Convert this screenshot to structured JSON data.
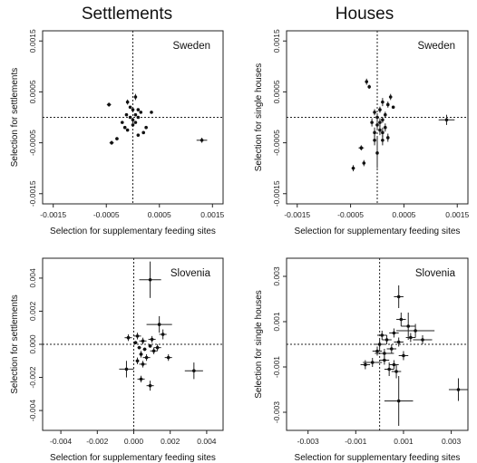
{
  "column_titles": [
    "Settlements",
    "Houses"
  ],
  "chart_data": [
    {
      "type": "scatter",
      "title": "Sweden",
      "xlabel": "Selection for supplementary feeding sites",
      "ylabel": "Selection for settlements",
      "xlim": [
        -0.0017,
        0.0017
      ],
      "ylim": [
        -0.0017,
        0.0017
      ],
      "xticks": [
        -0.0015,
        -0.0005,
        0.0005,
        0.0015
      ],
      "xtick_labels": [
        "-0.0015",
        "-0.0005",
        "0.0005",
        "0.0015"
      ],
      "yticks": [
        -0.0015,
        -0.0005,
        0.0005,
        0.0015
      ],
      "ytick_labels": [
        "-0.0015",
        "-0.0005",
        "0.0005",
        "0.0015"
      ],
      "grid": false,
      "reference_lines": {
        "x": 0,
        "y": 0
      },
      "points": [
        {
          "x": -0.00045,
          "y": 0.00025,
          "xerr": 4e-05,
          "yerr": 4e-05
        },
        {
          "x": -0.0004,
          "y": -0.0005,
          "xerr": 4e-05,
          "yerr": 4e-05
        },
        {
          "x": -0.0003,
          "y": -0.00042,
          "xerr": 3e-05,
          "yerr": 3e-05
        },
        {
          "x": 0.0013,
          "y": -0.00045,
          "xerr": 0.0001,
          "yerr": 5e-05
        },
        {
          "x": 0.00035,
          "y": 0.0001,
          "xerr": 2e-05,
          "yerr": 2e-05
        },
        {
          "x": 0.00025,
          "y": -0.0002,
          "xerr": 2e-05,
          "yerr": 2e-05
        },
        {
          "x": 0.0002,
          "y": -0.0003,
          "xerr": 2e-05,
          "yerr": 2e-05
        },
        {
          "x": 0.0001,
          "y": -0.00035,
          "xerr": 2e-05,
          "yerr": 2e-05
        },
        {
          "x": 5e-05,
          "y": 0.0004,
          "xerr": 2e-05,
          "yerr": 6e-05
        },
        {
          "x": -0.0001,
          "y": 0.0003,
          "xerr": 2e-05,
          "yerr": 5e-05
        },
        {
          "x": -5e-05,
          "y": 0.0002,
          "xerr": 2e-05,
          "yerr": 2e-05
        },
        {
          "x": 0.0,
          "y": 0.00015,
          "xerr": 2e-05,
          "yerr": 2e-05
        },
        {
          "x": -0.00012,
          "y": 5e-05,
          "xerr": 2e-05,
          "yerr": 2e-05
        },
        {
          "x": -0.0002,
          "y": -0.0001,
          "xerr": 2e-05,
          "yerr": 2e-05
        },
        {
          "x": -0.00015,
          "y": -0.0002,
          "xerr": 2e-05,
          "yerr": 2e-05
        },
        {
          "x": -0.0001,
          "y": -0.00025,
          "xerr": 2e-05,
          "yerr": 2e-05
        },
        {
          "x": 0.0,
          "y": -0.00015,
          "xerr": 2e-05,
          "yerr": 2e-05
        },
        {
          "x": 5e-05,
          "y": -0.0001,
          "xerr": 2e-05,
          "yerr": 2e-05
        },
        {
          "x": 0.0001,
          "y": 0.0,
          "xerr": 2e-05,
          "yerr": 2e-05
        },
        {
          "x": 0.00015,
          "y": 0.0001,
          "xerr": 2e-05,
          "yerr": 2e-05
        },
        {
          "x": -5e-05,
          "y": 0.0,
          "xerr": 2e-05,
          "yerr": 2e-05
        },
        {
          "x": 0.0,
          "y": -5e-05,
          "xerr": 2e-05,
          "yerr": 2e-05
        },
        {
          "x": 0.0001,
          "y": 0.00015,
          "xerr": 2e-05,
          "yerr": 2e-05
        },
        {
          "x": 5e-05,
          "y": 5e-05,
          "xerr": 2e-05,
          "yerr": 2e-05
        }
      ]
    },
    {
      "type": "scatter",
      "title": "Sweden",
      "xlabel": "Selection for supplementary feeding sites",
      "ylabel": "Selection for single houses",
      "xlim": [
        -0.0017,
        0.0017
      ],
      "ylim": [
        -0.0017,
        0.0017
      ],
      "xticks": [
        -0.0015,
        -0.0005,
        0.0005,
        0.0015
      ],
      "xtick_labels": [
        "-0.0015",
        "-0.0005",
        "0.0005",
        "0.0015"
      ],
      "yticks": [
        -0.0015,
        -0.0005,
        0.0005,
        0.0015
      ],
      "ytick_labels": [
        "-0.0015",
        "-0.0005",
        "0.0005",
        "0.0015"
      ],
      "grid": false,
      "reference_lines": {
        "x": 0,
        "y": 0
      },
      "points": [
        {
          "x": -0.00045,
          "y": -0.001,
          "xerr": 3e-05,
          "yerr": 6e-05
        },
        {
          "x": -0.00025,
          "y": -0.0009,
          "xerr": 3e-05,
          "yerr": 6e-05
        },
        {
          "x": -0.0003,
          "y": -0.0006,
          "xerr": 5e-05,
          "yerr": 5e-05
        },
        {
          "x": -0.0002,
          "y": 0.0007,
          "xerr": 2e-05,
          "yerr": 6e-05
        },
        {
          "x": -0.00015,
          "y": 0.0006,
          "xerr": 2e-05,
          "yerr": 4e-05
        },
        {
          "x": 0.00025,
          "y": 0.0004,
          "xerr": 3e-05,
          "yerr": 6e-05
        },
        {
          "x": 0.0003,
          "y": 0.0002,
          "xerr": 2e-05,
          "yerr": 3e-05
        },
        {
          "x": 0.0013,
          "y": -5e-05,
          "xerr": 0.00015,
          "yerr": 0.0001
        },
        {
          "x": 0.0002,
          "y": 0.00025,
          "xerr": 2e-05,
          "yerr": 6e-05
        },
        {
          "x": 0.0001,
          "y": 0.0003,
          "xerr": 2e-05,
          "yerr": 8e-05
        },
        {
          "x": 5e-05,
          "y": 0.00015,
          "xerr": 2e-05,
          "yerr": 6e-05
        },
        {
          "x": -5e-05,
          "y": 0.0001,
          "xerr": 2e-05,
          "yerr": 6e-05
        },
        {
          "x": 0.0,
          "y": 0.0,
          "xerr": 2e-05,
          "yerr": 8e-05
        },
        {
          "x": -0.0001,
          "y": -0.0001,
          "xerr": 2e-05,
          "yerr": 8e-05
        },
        {
          "x": 0.0,
          "y": -0.00015,
          "xerr": 2e-05,
          "yerr": 0.0001
        },
        {
          "x": 5e-05,
          "y": -0.00025,
          "xerr": 2e-05,
          "yerr": 0.0001
        },
        {
          "x": -5e-05,
          "y": -0.0003,
          "xerr": 2e-05,
          "yerr": 0.0001
        },
        {
          "x": 0.0001,
          "y": -0.0003,
          "xerr": 2e-05,
          "yerr": 0.0001
        },
        {
          "x": 0.0001,
          "y": -0.00045,
          "xerr": 2e-05,
          "yerr": 0.0001
        },
        {
          "x": 0.00015,
          "y": 5e-05,
          "xerr": 2e-05,
          "yerr": 6e-05
        },
        {
          "x": 0.0001,
          "y": -5e-05,
          "xerr": 2e-05,
          "yerr": 6e-05
        },
        {
          "x": 0.00015,
          "y": -0.0002,
          "xerr": 2e-05,
          "yerr": 8e-05
        },
        {
          "x": -5e-05,
          "y": -0.00045,
          "xerr": 2e-05,
          "yerr": 0.0001
        },
        {
          "x": 5e-05,
          "y": -0.0001,
          "xerr": 2e-05,
          "yerr": 8e-05
        },
        {
          "x": 0.0,
          "y": -0.0007,
          "xerr": 2e-05,
          "yerr": 0.0003
        },
        {
          "x": 0.0002,
          "y": -0.0004,
          "xerr": 2e-05,
          "yerr": 8e-05
        }
      ]
    },
    {
      "type": "scatter",
      "title": "Slovenia",
      "xlabel": "Selection for supplementary feeding sites",
      "ylabel": "Selection for settlements",
      "xlim": [
        -0.005,
        0.0049
      ],
      "ylim": [
        -0.0052,
        0.0052
      ],
      "xticks": [
        -0.004,
        -0.002,
        0.0,
        0.002,
        0.004
      ],
      "xtick_labels": [
        "-0.004",
        "-0.002",
        "0.000",
        "0.002",
        "0.004"
      ],
      "yticks": [
        -0.004,
        -0.002,
        0.0,
        0.002,
        0.004
      ],
      "ytick_labels": [
        "-0.004",
        "-0.002",
        "0.000",
        "0.002",
        "0.004"
      ],
      "grid": false,
      "reference_lines": {
        "x": 0,
        "y": 0
      },
      "points": [
        {
          "x": 0.0009,
          "y": 0.0039,
          "xerr": 0.0006,
          "yerr": 0.0011
        },
        {
          "x": 0.0014,
          "y": 0.0012,
          "xerr": 0.0007,
          "yerr": 0.0005
        },
        {
          "x": 0.0016,
          "y": 0.0006,
          "xerr": 0.0002,
          "yerr": 0.0003
        },
        {
          "x": -0.0004,
          "y": -0.0015,
          "xerr": 0.0004,
          "yerr": 0.0005
        },
        {
          "x": 0.0004,
          "y": -0.0021,
          "xerr": 0.0002,
          "yerr": 0.0002
        },
        {
          "x": 0.0009,
          "y": -0.0025,
          "xerr": 0.0002,
          "yerr": 0.0003
        },
        {
          "x": 0.0033,
          "y": -0.0016,
          "xerr": 0.0005,
          "yerr": 0.0005
        },
        {
          "x": -0.0003,
          "y": 0.0004,
          "xerr": 0.0002,
          "yerr": 0.0002
        },
        {
          "x": 0.0002,
          "y": 0.0005,
          "xerr": 0.0002,
          "yerr": 0.0002
        },
        {
          "x": 0.0005,
          "y": 0.0002,
          "xerr": 0.0002,
          "yerr": 0.0002
        },
        {
          "x": 0.0003,
          "y": -0.0002,
          "xerr": 0.0001,
          "yerr": 0.0001
        },
        {
          "x": 0.0006,
          "y": -0.0003,
          "xerr": 0.0001,
          "yerr": 0.0001
        },
        {
          "x": 0.0009,
          "y": -0.0001,
          "xerr": 0.0001,
          "yerr": 0.0001
        },
        {
          "x": 0.0011,
          "y": -0.0004,
          "xerr": 0.0002,
          "yerr": 0.0002
        },
        {
          "x": 0.0013,
          "y": -0.0002,
          "xerr": 0.0002,
          "yerr": 0.0002
        },
        {
          "x": 0.0004,
          "y": -0.0006,
          "xerr": 0.0001,
          "yerr": 0.0002
        },
        {
          "x": 0.0007,
          "y": -0.0008,
          "xerr": 0.0002,
          "yerr": 0.0002
        },
        {
          "x": 0.0002,
          "y": -0.001,
          "xerr": 0.0001,
          "yerr": 0.0002
        },
        {
          "x": 0.0005,
          "y": -0.0012,
          "xerr": 0.0002,
          "yerr": 0.0002
        },
        {
          "x": 0.0019,
          "y": -0.0008,
          "xerr": 0.0002,
          "yerr": 0.0002
        },
        {
          "x": 0.001,
          "y": 0.0003,
          "xerr": 0.0002,
          "yerr": 0.0002
        },
        {
          "x": 0.0001,
          "y": 0.0001,
          "xerr": 0.0001,
          "yerr": 0.0001
        }
      ]
    },
    {
      "type": "scatter",
      "title": "Slovenia",
      "xlabel": "Selection for supplementary feeding sites",
      "ylabel": "Selection for single houses",
      "xlim": [
        -0.0039,
        0.0037
      ],
      "ylim": [
        -0.0038,
        0.0038
      ],
      "xticks": [
        -0.003,
        -0.001,
        0.001,
        0.003
      ],
      "xtick_labels": [
        "-0.003",
        "-0.001",
        "0.001",
        "0.003"
      ],
      "yticks": [
        -0.003,
        -0.001,
        0.001,
        0.003
      ],
      "ytick_labels": [
        "-0.003",
        "-0.001",
        "0.001",
        "0.003"
      ],
      "grid": false,
      "reference_lines": {
        "x": 0,
        "y": 0
      },
      "points": [
        {
          "x": 0.0008,
          "y": -0.0025,
          "xerr": 0.0006,
          "yerr": 0.0011
        },
        {
          "x": 0.0033,
          "y": -0.002,
          "xerr": 0.0004,
          "yerr": 0.0005
        },
        {
          "x": 0.0008,
          "y": 0.0021,
          "xerr": 0.0002,
          "yerr": 0.0005
        },
        {
          "x": 0.0015,
          "y": 0.0006,
          "xerr": 0.0008,
          "yerr": 0.0003
        },
        {
          "x": 0.0018,
          "y": 0.0002,
          "xerr": 0.0004,
          "yerr": 0.0002
        },
        {
          "x": 0.0012,
          "y": 0.0008,
          "xerr": 0.0003,
          "yerr": 0.0006
        },
        {
          "x": 0.0009,
          "y": 0.0011,
          "xerr": 0.0002,
          "yerr": 0.0003
        },
        {
          "x": -0.0003,
          "y": -0.0008,
          "xerr": 0.0004,
          "yerr": 0.0002
        },
        {
          "x": -0.0006,
          "y": -0.0009,
          "xerr": 0.0002,
          "yerr": 0.0002
        },
        {
          "x": 0.0002,
          "y": -0.0004,
          "xerr": 0.0004,
          "yerr": 0.0002
        },
        {
          "x": 0.0004,
          "y": -0.0011,
          "xerr": 0.0002,
          "yerr": 0.0003
        },
        {
          "x": 0.0007,
          "y": -0.0012,
          "xerr": 0.0002,
          "yerr": 0.0003
        },
        {
          "x": 0.0,
          "y": 0.0,
          "xerr": 0.0002,
          "yerr": 0.0002
        },
        {
          "x": 0.0003,
          "y": 0.0002,
          "xerr": 0.0002,
          "yerr": 0.0002
        },
        {
          "x": 0.0005,
          "y": -0.0002,
          "xerr": 0.0002,
          "yerr": 0.0002
        },
        {
          "x": 0.0008,
          "y": 0.0001,
          "xerr": 0.0002,
          "yerr": 0.0002
        },
        {
          "x": 0.001,
          "y": -0.0005,
          "xerr": 0.0002,
          "yerr": 0.0002
        },
        {
          "x": 0.0002,
          "y": -0.0007,
          "xerr": 0.0002,
          "yerr": 0.0002
        },
        {
          "x": 0.0006,
          "y": 0.0005,
          "xerr": 0.0002,
          "yerr": 0.0002
        },
        {
          "x": -0.0001,
          "y": -0.0003,
          "xerr": 0.0002,
          "yerr": 0.0002
        },
        {
          "x": 0.0013,
          "y": 0.0003,
          "xerr": 0.0002,
          "yerr": 0.0002
        },
        {
          "x": 0.0001,
          "y": 0.0004,
          "xerr": 0.0002,
          "yerr": 0.0002
        },
        {
          "x": 0.0006,
          "y": -0.0009,
          "xerr": 0.0002,
          "yerr": 0.0002
        }
      ]
    }
  ]
}
